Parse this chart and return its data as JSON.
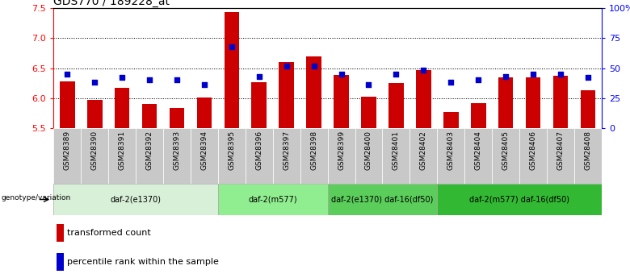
{
  "title": "GDS770 / 189228_at",
  "samples": [
    "GSM28389",
    "GSM28390",
    "GSM28391",
    "GSM28392",
    "GSM28393",
    "GSM28394",
    "GSM28395",
    "GSM28396",
    "GSM28397",
    "GSM28398",
    "GSM28399",
    "GSM28400",
    "GSM28401",
    "GSM28402",
    "GSM28403",
    "GSM28404",
    "GSM28405",
    "GSM28406",
    "GSM28407",
    "GSM28408"
  ],
  "bar_values": [
    6.28,
    5.97,
    6.17,
    5.9,
    5.83,
    6.01,
    7.44,
    6.26,
    6.6,
    6.7,
    6.38,
    6.02,
    6.25,
    6.46,
    5.77,
    5.91,
    6.35,
    6.35,
    6.37,
    6.13
  ],
  "percentile_values": [
    45,
    38,
    42,
    40,
    40,
    36,
    68,
    43,
    52,
    52,
    45,
    36,
    45,
    48,
    38,
    40,
    43,
    45,
    45,
    42
  ],
  "ylim_left": [
    5.5,
    7.5
  ],
  "ylim_right": [
    0,
    100
  ],
  "bar_color": "#cc0000",
  "dot_color": "#0000cc",
  "background_color": "#ffffff",
  "groups": [
    {
      "label": "daf-2(e1370)",
      "start": 0,
      "end": 5,
      "color": "#d8f0d8"
    },
    {
      "label": "daf-2(m577)",
      "start": 6,
      "end": 9,
      "color": "#90ee90"
    },
    {
      "label": "daf-2(e1370) daf-16(df50)",
      "start": 10,
      "end": 13,
      "color": "#5acd5a"
    },
    {
      "label": "daf-2(m577) daf-16(df50)",
      "start": 14,
      "end": 19,
      "color": "#32b832"
    }
  ],
  "legend_red_label": "transformed count",
  "legend_blue_label": "percentile rank within the sample",
  "genotype_label": "genotype/variation",
  "left_yticks": [
    5.5,
    6.0,
    6.5,
    7.0,
    7.5
  ],
  "right_yticks": [
    0,
    25,
    50,
    75,
    100
  ],
  "right_yticklabels": [
    "0",
    "25",
    "50",
    "75",
    "100%"
  ],
  "gridlines": [
    6.0,
    6.5,
    7.0
  ],
  "sample_bg_color": "#c8c8c8",
  "title_fontsize": 10,
  "tick_fontsize": 8,
  "sample_fontsize": 6.5
}
